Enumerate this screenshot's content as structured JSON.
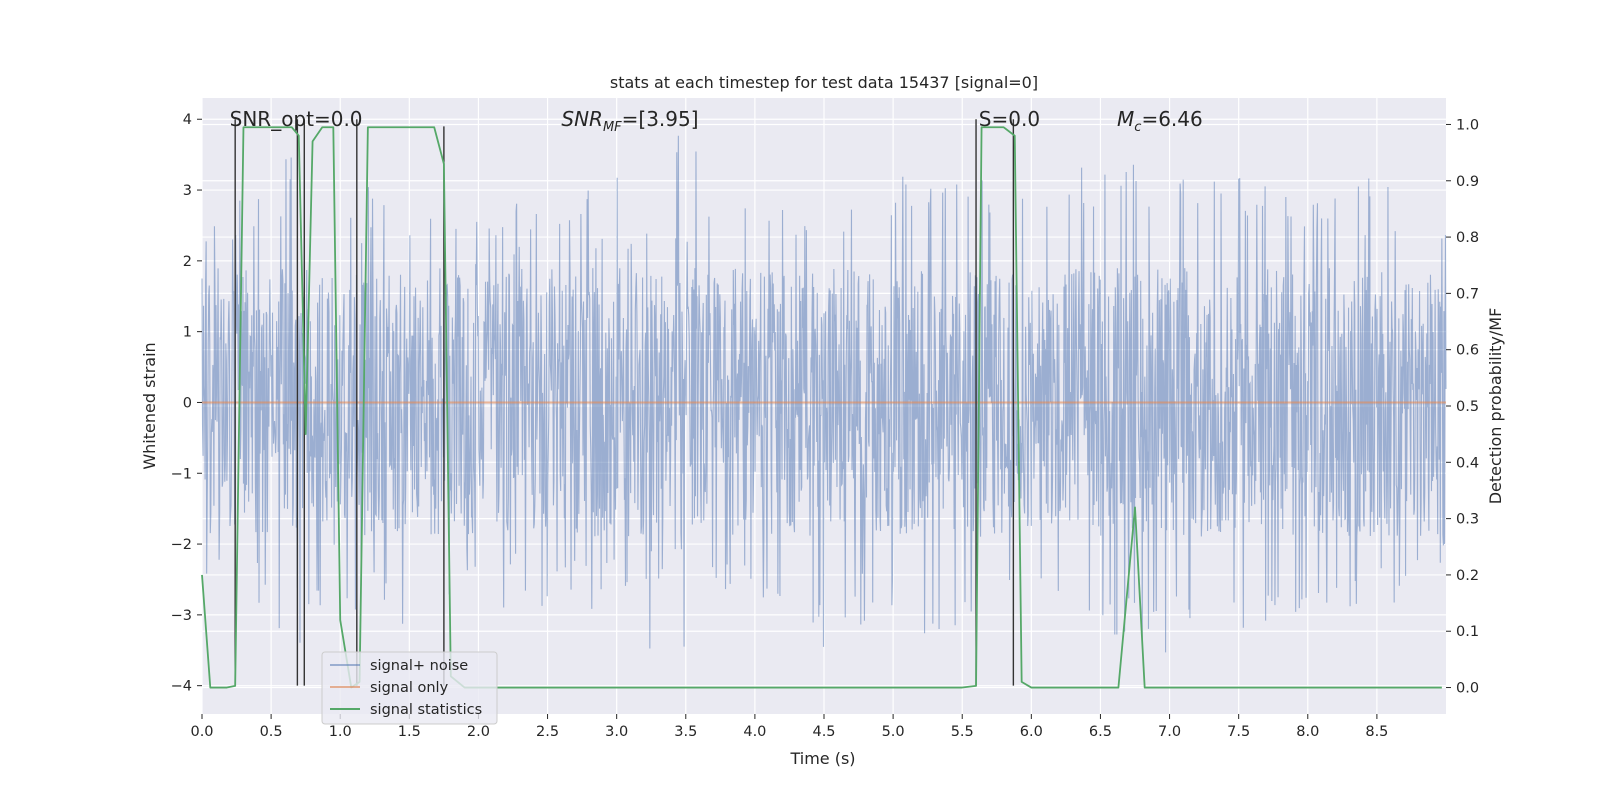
{
  "chart_data": {
    "type": "line",
    "title": "stats at each timestep for test data 15437 [signal=0]",
    "xlabel": "Time (s)",
    "ylabel_left": "Whitened strain",
    "ylabel_right": "Detection probability/MF",
    "xlim": [
      0.0,
      9.0
    ],
    "ylim_left": [
      -4.4,
      4.3
    ],
    "ylim_right": [
      -0.047,
      1.047
    ],
    "x_ticks": [
      "0.0",
      "0.5",
      "1.0",
      "1.5",
      "2.0",
      "2.5",
      "3.0",
      "3.5",
      "4.0",
      "4.5",
      "5.0",
      "5.5",
      "6.0",
      "6.5",
      "7.0",
      "7.5",
      "8.0",
      "8.5"
    ],
    "y_ticks_left": [
      "−4",
      "−3",
      "−2",
      "−1",
      "0",
      "1",
      "2",
      "3",
      "4"
    ],
    "y_ticks_right": [
      "0.0",
      "0.1",
      "0.2",
      "0.3",
      "0.4",
      "0.5",
      "0.6",
      "0.7",
      "0.8",
      "0.9",
      "1.0"
    ],
    "grid": true,
    "legend_position": "lower-left",
    "annotations": [
      {
        "text": "SNR_opt=0.0",
        "x": 0.2,
        "y": 4.0
      },
      {
        "text": "SNR_MF=[3.95]",
        "x": 2.6,
        "y": 4.0
      },
      {
        "text": "S=0.0",
        "x": 5.62,
        "y": 4.0
      },
      {
        "text": "M_c=6.46",
        "x": 6.62,
        "y": 4.0
      }
    ],
    "series": [
      {
        "name": "signal+ noise",
        "color": "#4c72b0",
        "axis": "left",
        "description": "whitened strain noise, roughly within ±3 with spikes to ±4",
        "envelope_samples": [
          [
            0.0,
            2.7,
            -2.6
          ],
          [
            0.5,
            3.0,
            -2.8
          ],
          [
            0.65,
            3.2,
            -3.9
          ],
          [
            1.0,
            2.7,
            -2.3
          ],
          [
            1.1,
            3.3,
            -2.5
          ],
          [
            1.5,
            2.8,
            -3.4
          ],
          [
            2.0,
            2.9,
            -2.4
          ],
          [
            2.5,
            3.0,
            -2.8
          ],
          [
            3.4,
            3.9,
            -2.5
          ],
          [
            4.0,
            2.9,
            -2.9
          ],
          [
            4.5,
            2.9,
            -3.7
          ],
          [
            5.0,
            3.1,
            -3.4
          ],
          [
            5.5,
            3.4,
            -3.2
          ],
          [
            6.0,
            3.1,
            -2.7
          ],
          [
            6.5,
            3.6,
            -3.2
          ],
          [
            7.0,
            3.2,
            -3.6
          ],
          [
            7.5,
            3.1,
            -3.5
          ],
          [
            8.0,
            3.0,
            -3.0
          ],
          [
            8.7,
            3.3,
            -2.8
          ],
          [
            9.0,
            2.4,
            -2.2
          ]
        ]
      },
      {
        "name": "signal only",
        "color": "#dd8452",
        "axis": "left",
        "x": [
          0.0,
          9.0
        ],
        "y": [
          0.0,
          0.0
        ]
      },
      {
        "name": "signal statistics",
        "color": "#55a868",
        "axis": "right",
        "x": [
          0.0,
          0.06,
          0.18,
          0.24,
          0.3,
          0.4,
          0.55,
          0.65,
          0.7,
          0.75,
          0.8,
          0.87,
          0.95,
          1.0,
          1.08,
          1.14,
          1.2,
          1.3,
          1.5,
          1.68,
          1.75,
          1.8,
          1.9,
          2.0,
          3.0,
          4.0,
          5.0,
          5.5,
          5.6,
          5.64,
          5.72,
          5.8,
          5.88,
          5.93,
          6.0,
          6.5,
          6.63,
          6.75,
          6.82,
          7.0,
          7.5,
          8.0,
          8.5,
          8.97
        ],
        "y": [
          0.2,
          0.0,
          0.0,
          0.003,
          0.995,
          0.995,
          0.995,
          0.995,
          0.98,
          0.45,
          0.97,
          0.995,
          0.995,
          0.12,
          0.0,
          0.01,
          0.995,
          0.995,
          0.995,
          0.995,
          0.93,
          0.02,
          0.0,
          0.0,
          0.0,
          0.0,
          0.0,
          0.0,
          0.003,
          0.995,
          0.995,
          0.995,
          0.98,
          0.01,
          0.0,
          0.0,
          0.0,
          0.32,
          0.0,
          0.0,
          0.0,
          0.0,
          0.0,
          0.0
        ]
      }
    ],
    "vertical_markers": {
      "color": "#333333",
      "x": [
        0.24,
        0.69,
        0.74,
        1.12,
        1.75,
        5.6,
        5.87
      ],
      "y_top_left": [
        4.0,
        4.0,
        4.0,
        4.0,
        3.9,
        4.0,
        4.0
      ],
      "y_bottom_left": [
        -4.0,
        -4.0,
        -4.0,
        -4.0,
        -4.0,
        -4.0,
        -4.0
      ]
    }
  }
}
